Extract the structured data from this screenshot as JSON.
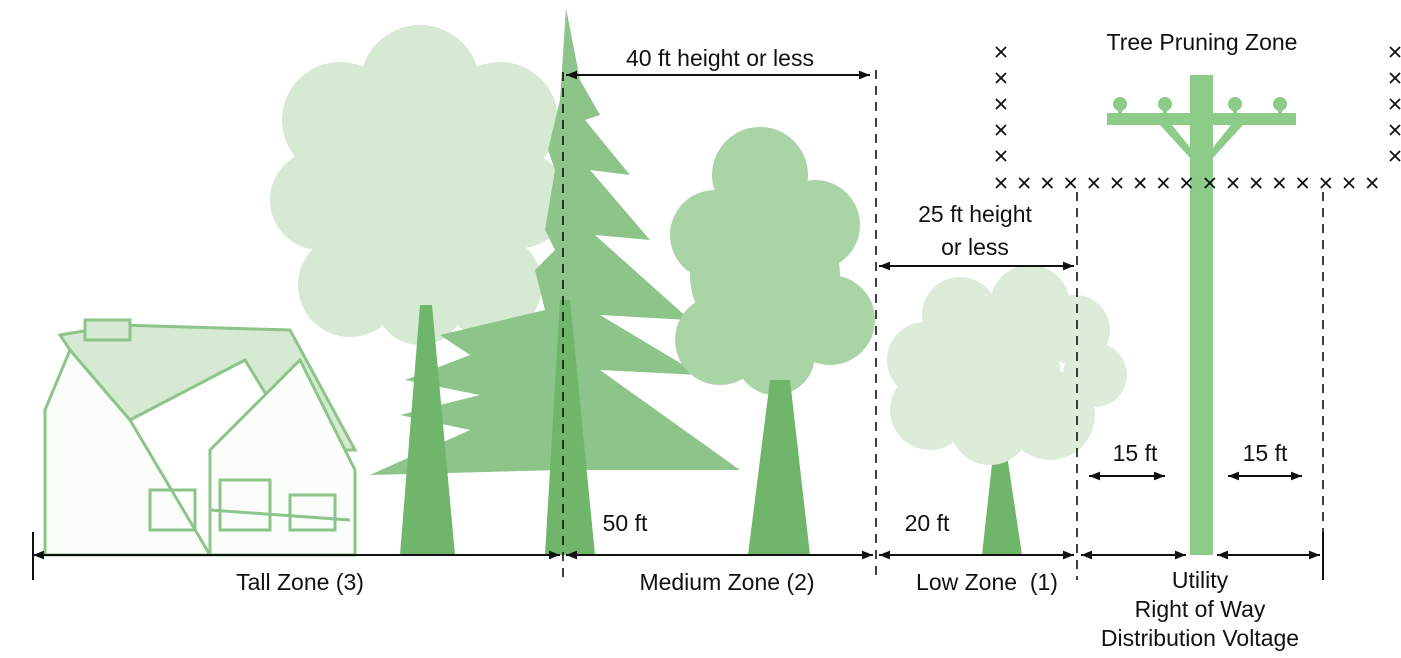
{
  "title": "Tree Pruning Zone",
  "height_limits": [
    [
      "40 ft height or less"
    ],
    [
      "25 ft height",
      "or less"
    ]
  ],
  "distances": [
    "50 ft",
    "20 ft",
    "15 ft",
    "15 ft"
  ],
  "zones": [
    [
      "Tall Zone (3)"
    ],
    [
      "Medium Zone (2)"
    ],
    [
      "Low Zone  (1)"
    ],
    [
      "Utility",
      "Right of Way",
      "Distribution Voltage"
    ]
  ]
}
